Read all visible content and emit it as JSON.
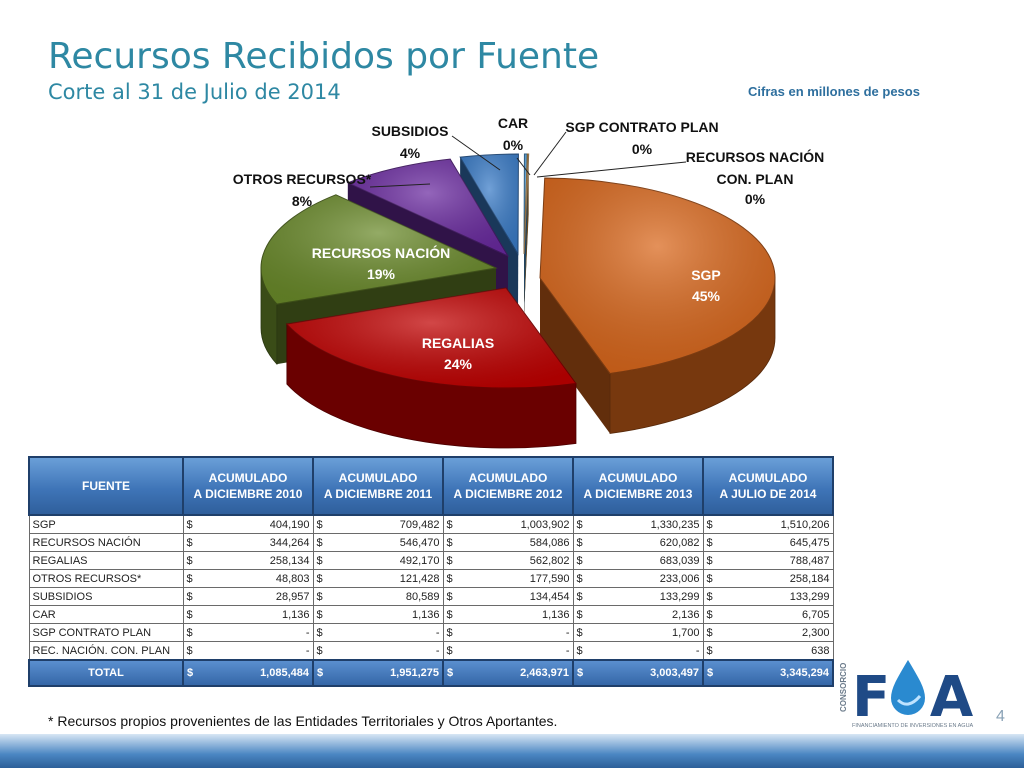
{
  "title": "Recursos Recibidos por Fuente",
  "subtitle": "Corte al 31 de Julio de 2014",
  "note": "Cifras en millones de pesos",
  "chart_data": {
    "type": "pie",
    "title": "",
    "slices": [
      {
        "label": "SGP",
        "pct_label": "45%",
        "value": 45,
        "color": "#d9661a"
      },
      {
        "label": "REGALIAS",
        "pct_label": "24%",
        "value": 24,
        "color": "#c00000"
      },
      {
        "label": "RECURSOS NACIÓN",
        "pct_label": "19%",
        "value": 19,
        "color": "#6a8a2a"
      },
      {
        "label": "OTROS RECURSOS*",
        "pct_label": "8%",
        "value": 8,
        "color": "#6a2aa0"
      },
      {
        "label": "SUBSIDIOS",
        "pct_label": "4%",
        "value": 4,
        "color": "#3a7cc8"
      },
      {
        "label": "CAR",
        "pct_label": "0%",
        "value": 0.2,
        "color": "#4a9ad8"
      },
      {
        "label": "SGP CONTRATO PLAN",
        "pct_label": "0%",
        "value": 0.07,
        "color": "#e8a040"
      },
      {
        "label": "RECURSOS NACIÓN CON. PLAN",
        "pct_label": "0%",
        "value": 0.02,
        "color": "#f0c080"
      }
    ]
  },
  "table": {
    "headers": [
      "FUENTE",
      "ACUMULADO\nA DICIEMBRE 2010",
      "ACUMULADO\nA DICIEMBRE 2011",
      "ACUMULADO\nA DICIEMBRE 2012",
      "ACUMULADO\nA DICIEMBRE 2013",
      "ACUMULADO\nA JULIO DE 2014"
    ],
    "currency": "$",
    "rows": [
      {
        "fuente": "SGP",
        "values": [
          "404,190",
          "709,482",
          "1,003,902",
          "1,330,235",
          "1,510,206"
        ]
      },
      {
        "fuente": "RECURSOS NACIÓN",
        "values": [
          "344,264",
          "546,470",
          "584,086",
          "620,082",
          "645,475"
        ]
      },
      {
        "fuente": "REGALIAS",
        "values": [
          "258,134",
          "492,170",
          "562,802",
          "683,039",
          "788,487"
        ]
      },
      {
        "fuente": "OTROS RECURSOS*",
        "values": [
          "48,803",
          "121,428",
          "177,590",
          "233,006",
          "258,184"
        ]
      },
      {
        "fuente": "SUBSIDIOS",
        "values": [
          "28,957",
          "80,589",
          "134,454",
          "133,299",
          "133,299"
        ]
      },
      {
        "fuente": "CAR",
        "values": [
          "1,136",
          "1,136",
          "1,136",
          "2,136",
          "6,705"
        ]
      },
      {
        "fuente": "SGP CONTRATO PLAN",
        "values": [
          "-",
          "-",
          "-",
          "1,700",
          "2,300"
        ]
      },
      {
        "fuente": "REC. NACIÓN.  CON. PLAN",
        "values": [
          "-",
          "-",
          "-",
          "-",
          "638"
        ]
      }
    ],
    "total": {
      "fuente": "TOTAL",
      "values": [
        "1,085,484",
        "1,951,275",
        "2,463,971",
        "3,003,497",
        "3,345,294"
      ]
    }
  },
  "footnote": "* Recursos propios provenientes de  las Entidades Territoriales y Otros Aportantes.",
  "page_number": "4",
  "logo": {
    "text": "FA",
    "vertical": "CONSORCIO",
    "tagline": "FINANCIAMIENTO DE INVERSIONES EN AGUA"
  }
}
